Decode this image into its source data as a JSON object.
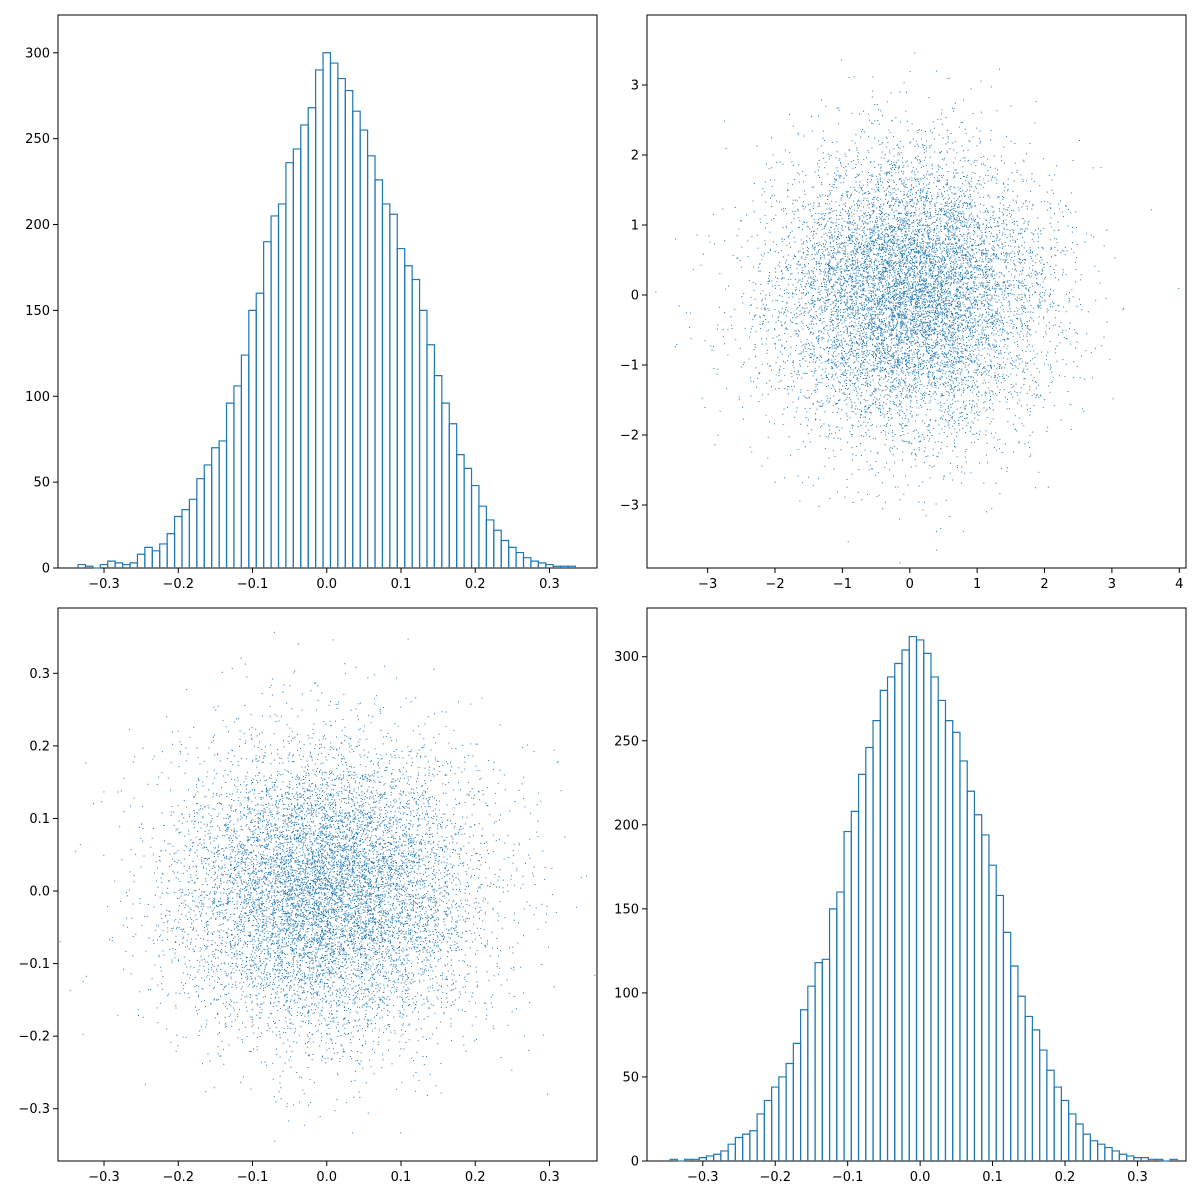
{
  "colors": {
    "series": "#1f77b4",
    "axes": "#000000",
    "background": "#ffffff"
  },
  "chart_data": [
    {
      "id": "top-left",
      "type": "bar",
      "subtype": "step-histogram",
      "title": "",
      "xlabel": "",
      "ylabel": "",
      "grid": false,
      "xlim": [
        -0.362,
        0.364
      ],
      "ylim": [
        0,
        322
      ],
      "xticks": [
        -0.3,
        -0.2,
        -0.1,
        0.0,
        0.1,
        0.2,
        0.3
      ],
      "xticklabels": [
        "−0.3",
        "−0.2",
        "−0.1",
        "0.0",
        "0.1",
        "0.2",
        "0.3"
      ],
      "yticks": [
        0,
        50,
        100,
        150,
        200,
        250,
        300
      ],
      "yticklabels": [
        "0",
        "50",
        "100",
        "150",
        "200",
        "250",
        "300"
      ],
      "x": [
        -0.33,
        -0.32,
        -0.31,
        -0.3,
        -0.29,
        -0.28,
        -0.27,
        -0.26,
        -0.25,
        -0.24,
        -0.23,
        -0.22,
        -0.21,
        -0.2,
        -0.19,
        -0.18,
        -0.17,
        -0.16,
        -0.15,
        -0.14,
        -0.13,
        -0.12,
        -0.11,
        -0.1,
        -0.09,
        -0.08,
        -0.07,
        -0.06,
        -0.05,
        -0.04,
        -0.03,
        -0.02,
        -0.01,
        0.0,
        0.01,
        0.02,
        0.03,
        0.04,
        0.05,
        0.06,
        0.07,
        0.08,
        0.09,
        0.1,
        0.11,
        0.12,
        0.13,
        0.14,
        0.15,
        0.16,
        0.17,
        0.18,
        0.19,
        0.2,
        0.21,
        0.22,
        0.23,
        0.24,
        0.25,
        0.26,
        0.27,
        0.28,
        0.29,
        0.3,
        0.31,
        0.32,
        0.33
      ],
      "values": [
        2,
        1,
        0,
        2,
        4,
        3,
        2,
        3,
        8,
        12,
        10,
        14,
        20,
        30,
        34,
        40,
        52,
        60,
        70,
        74,
        96,
        106,
        124,
        150,
        160,
        190,
        205,
        212,
        236,
        244,
        258,
        268,
        290,
        300,
        294,
        285,
        278,
        266,
        255,
        240,
        226,
        212,
        206,
        186,
        176,
        168,
        150,
        130,
        112,
        96,
        84,
        66,
        58,
        48,
        36,
        28,
        22,
        16,
        12,
        9,
        6,
        4,
        3,
        2,
        1,
        1,
        1
      ],
      "bin_width": 0.01
    },
    {
      "id": "top-right",
      "type": "scatter",
      "title": "",
      "xlabel": "",
      "ylabel": "",
      "grid": false,
      "n_points": 10000,
      "distribution": {
        "center": [
          0,
          0
        ],
        "std": [
          1,
          1
        ]
      },
      "xlim": [
        -3.9,
        4.1
      ],
      "ylim": [
        -3.9,
        4.0
      ],
      "xticks": [
        -3,
        -2,
        -1,
        0,
        1,
        2,
        3,
        4
      ],
      "xticklabels": [
        "−3",
        "−2",
        "−1",
        "0",
        "1",
        "2",
        "3",
        "4"
      ],
      "yticks": [
        -3,
        -2,
        -1,
        0,
        1,
        2,
        3
      ],
      "yticklabels": [
        "−3",
        "−2",
        "−1",
        "0",
        "1",
        "2",
        "3"
      ]
    },
    {
      "id": "bottom-left",
      "type": "scatter",
      "title": "",
      "xlabel": "",
      "ylabel": "",
      "grid": false,
      "n_points": 10000,
      "distribution": {
        "center": [
          0,
          0
        ],
        "std": [
          0.1,
          0.1
        ]
      },
      "xlim": [
        -0.362,
        0.364
      ],
      "ylim": [
        -0.372,
        0.39
      ],
      "xticks": [
        -0.3,
        -0.2,
        -0.1,
        0.0,
        0.1,
        0.2,
        0.3
      ],
      "xticklabels": [
        "−0.3",
        "−0.2",
        "−0.1",
        "0.0",
        "0.1",
        "0.2",
        "0.3"
      ],
      "yticks": [
        -0.3,
        -0.2,
        -0.1,
        0.0,
        0.1,
        0.2,
        0.3
      ],
      "yticklabels": [
        "−0.3",
        "−0.2",
        "−0.1",
        "0.0",
        "0.1",
        "0.2",
        "0.3"
      ]
    },
    {
      "id": "bottom-right",
      "type": "bar",
      "subtype": "step-histogram",
      "title": "",
      "xlabel": "",
      "ylabel": "",
      "grid": false,
      "xlim": [
        -0.377,
        0.367
      ],
      "ylim": [
        0,
        329
      ],
      "xticks": [
        -0.3,
        -0.2,
        -0.1,
        0.0,
        0.1,
        0.2,
        0.3
      ],
      "xticklabels": [
        "−0.3",
        "−0.2",
        "−0.1",
        "0.0",
        "0.1",
        "0.2",
        "0.3"
      ],
      "yticks": [
        0,
        50,
        100,
        150,
        200,
        250,
        300
      ],
      "yticklabels": [
        "0",
        "50",
        "100",
        "150",
        "200",
        "250",
        "300"
      ],
      "x": [
        -0.34,
        -0.33,
        -0.32,
        -0.31,
        -0.3,
        -0.29,
        -0.28,
        -0.27,
        -0.26,
        -0.25,
        -0.24,
        -0.23,
        -0.22,
        -0.21,
        -0.2,
        -0.19,
        -0.18,
        -0.17,
        -0.16,
        -0.15,
        -0.14,
        -0.13,
        -0.12,
        -0.11,
        -0.1,
        -0.09,
        -0.08,
        -0.07,
        -0.06,
        -0.05,
        -0.04,
        -0.03,
        -0.02,
        -0.01,
        0.0,
        0.01,
        0.02,
        0.03,
        0.04,
        0.05,
        0.06,
        0.07,
        0.08,
        0.09,
        0.1,
        0.11,
        0.12,
        0.13,
        0.14,
        0.15,
        0.16,
        0.17,
        0.18,
        0.19,
        0.2,
        0.21,
        0.22,
        0.23,
        0.24,
        0.25,
        0.26,
        0.27,
        0.28,
        0.29,
        0.3,
        0.31,
        0.32,
        0.33,
        0.34,
        0.35
      ],
      "values": [
        1,
        0,
        1,
        1,
        2,
        3,
        4,
        6,
        10,
        14,
        16,
        18,
        28,
        36,
        44,
        50,
        58,
        70,
        90,
        104,
        118,
        120,
        150,
        160,
        196,
        208,
        230,
        246,
        262,
        280,
        288,
        296,
        304,
        312,
        310,
        302,
        288,
        274,
        262,
        255,
        238,
        220,
        206,
        194,
        176,
        158,
        136,
        116,
        98,
        86,
        78,
        66,
        54,
        44,
        36,
        28,
        22,
        16,
        12,
        10,
        8,
        6,
        4,
        3,
        2,
        2,
        1,
        1,
        0,
        1
      ],
      "bin_width": 0.01
    }
  ]
}
